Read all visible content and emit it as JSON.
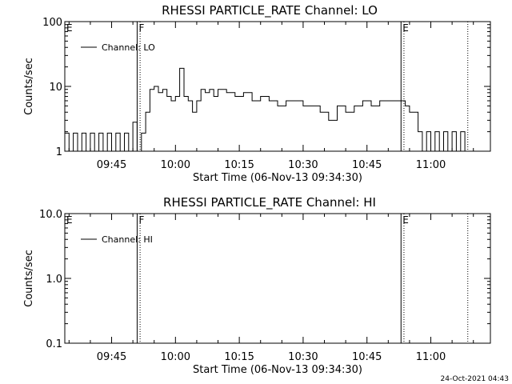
{
  "stamp": "24-Oct-2021 04:43",
  "chart_data": [
    {
      "type": "line",
      "title": "RHESSI PARTICLE_RATE Channel: LO",
      "xlabel": "Start Time (06-Nov-13 09:34:30)",
      "ylabel": "Counts/sec",
      "yscale": "log",
      "ylim": [
        1,
        100
      ],
      "yticks": [
        {
          "value": 1,
          "label": "1"
        },
        {
          "value": 10,
          "label": "10"
        },
        {
          "value": 100,
          "label": "100"
        }
      ],
      "xlim": [
        "09:34",
        "11:14"
      ],
      "xticks": [
        "09:45",
        "10:00",
        "10:15",
        "10:30",
        "10:45",
        "11:00"
      ],
      "legend": {
        "label": "Channel: LO",
        "placement": "top-left"
      },
      "flags": [
        {
          "label": "E",
          "time": "09:34"
        },
        {
          "label": "F",
          "time": "09:51"
        },
        {
          "label": "E",
          "time": "10:53"
        }
      ],
      "vlines_solid": [
        "09:51",
        "10:53"
      ],
      "vlines_dotted": [
        "09:51.5",
        "10:53.5",
        "11:08.5"
      ],
      "series": [
        {
          "name": "Channel: LO",
          "x": [
            "09:34",
            "09:35",
            "09:36",
            "09:37",
            "09:38",
            "09:39",
            "09:40",
            "09:41",
            "09:42",
            "09:43",
            "09:44",
            "09:45",
            "09:46",
            "09:47",
            "09:48",
            "09:49",
            "09:50",
            "09:51",
            "09:52",
            "09:53",
            "09:54",
            "09:55",
            "09:56",
            "09:57",
            "09:58",
            "09:59",
            "10:00",
            "10:01",
            "10:02",
            "10:03",
            "10:04",
            "10:05",
            "10:06",
            "10:07",
            "10:08",
            "10:09",
            "10:10",
            "10:12",
            "10:14",
            "10:16",
            "10:18",
            "10:20",
            "10:22",
            "10:24",
            "10:26",
            "10:28",
            "10:30",
            "10:32",
            "10:34",
            "10:36",
            "10:38",
            "10:40",
            "10:42",
            "10:44",
            "10:46",
            "10:48",
            "10:50",
            "10:52",
            "10:53",
            "10:54",
            "10:55",
            "10:56",
            "10:57",
            "10:58",
            "10:59",
            "11:00",
            "11:01",
            "11:02",
            "11:03",
            "11:04",
            "11:05",
            "11:06",
            "11:07",
            "11:08"
          ],
          "values": [
            1.9,
            1,
            1.9,
            1,
            1.9,
            1,
            1.9,
            1,
            1.9,
            1,
            1.9,
            1,
            1.9,
            1,
            1.9,
            1,
            2.8,
            1,
            1.9,
            4,
            9,
            10,
            8,
            9,
            7,
            6,
            7,
            19,
            7,
            6,
            4,
            6,
            9,
            8,
            9,
            7,
            9,
            8,
            7,
            8,
            6,
            7,
            6,
            5,
            6,
            6,
            5,
            5,
            4,
            3,
            5,
            4,
            5,
            6,
            5,
            6,
            6,
            6,
            6,
            5,
            4,
            4,
            2,
            1,
            2,
            1,
            2,
            1,
            2,
            1,
            2,
            1,
            2,
            1
          ]
        }
      ]
    },
    {
      "type": "line",
      "title": "RHESSI PARTICLE_RATE Channel: HI",
      "xlabel": "Start Time (06-Nov-13 09:34:30)",
      "ylabel": "Counts/sec",
      "yscale": "log",
      "ylim": [
        0.1,
        10
      ],
      "yticks": [
        {
          "value": 0.1,
          "label": "0.1"
        },
        {
          "value": 1,
          "label": "1.0"
        },
        {
          "value": 10,
          "label": "10.0"
        }
      ],
      "xlim": [
        "09:34",
        "11:14"
      ],
      "xticks": [
        "09:45",
        "10:00",
        "10:15",
        "10:30",
        "10:45",
        "11:00"
      ],
      "legend": {
        "label": "Channel: HI",
        "placement": "top-left"
      },
      "flags": [
        {
          "label": "E",
          "time": "09:34"
        },
        {
          "label": "F",
          "time": "09:51"
        },
        {
          "label": "E",
          "time": "10:53"
        }
      ],
      "vlines_solid": [
        "09:51",
        "10:53"
      ],
      "vlines_dotted": [
        "09:51.5",
        "10:53.5",
        "11:08.5"
      ],
      "series": [
        {
          "name": "Channel: HI",
          "x": [],
          "values": []
        }
      ]
    }
  ]
}
